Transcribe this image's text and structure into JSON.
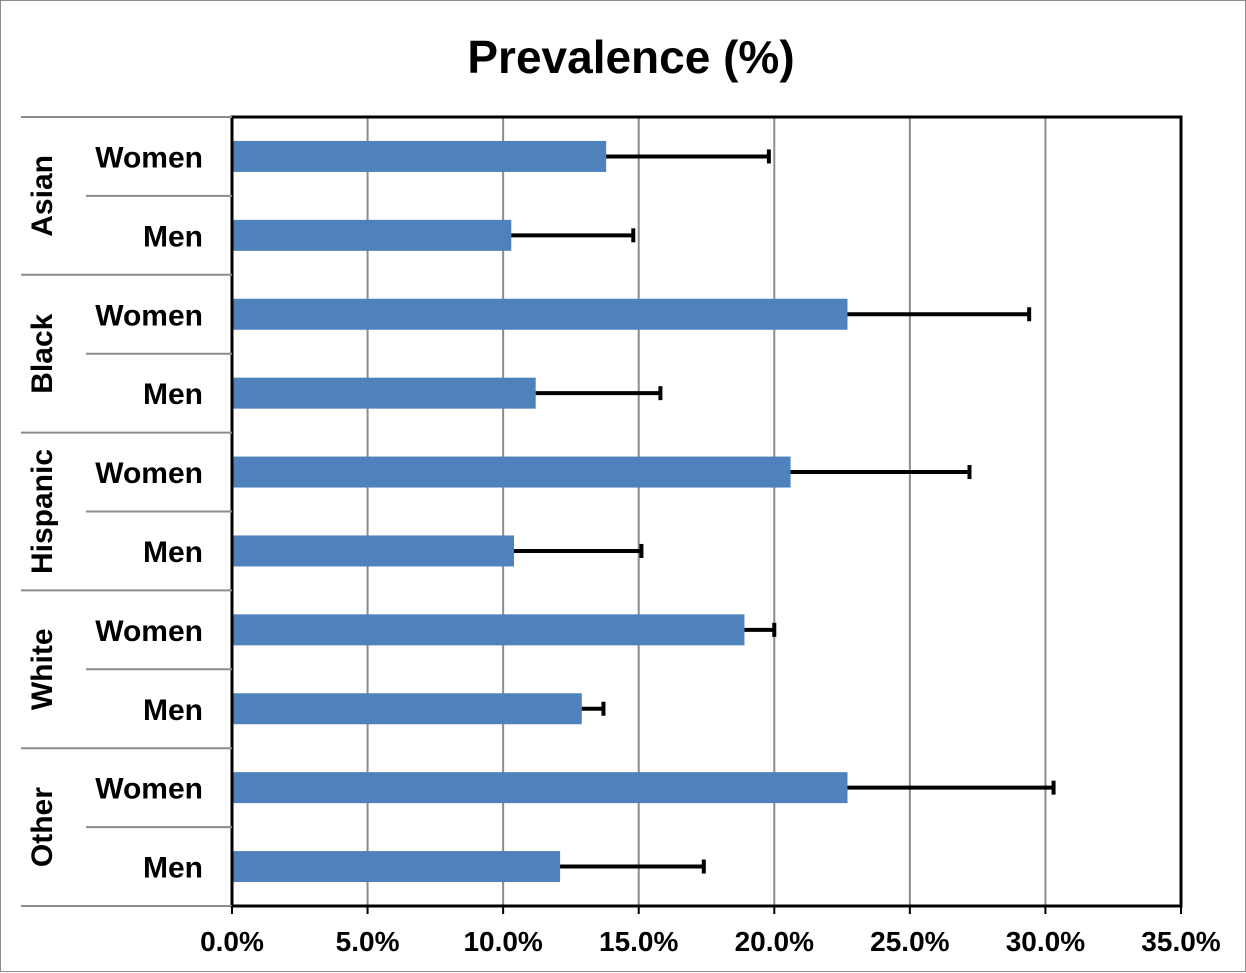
{
  "chart_data": {
    "type": "bar",
    "orientation": "horizontal",
    "title": "Prevalence (%)",
    "xlabel": "",
    "ylabel": "",
    "xlim": [
      0,
      35
    ],
    "x_ticks": [
      "0.0%",
      "5.0%",
      "10.0%",
      "15.0%",
      "20.0%",
      "25.0%",
      "30.0%",
      "35.0%"
    ],
    "x_tick_values": [
      0,
      5,
      10,
      15,
      20,
      25,
      30,
      35
    ],
    "grid": "vertical",
    "bar_color": "#4f81bd",
    "error_bar_color": "#000000",
    "groups": [
      {
        "name": "Asian",
        "categories": [
          {
            "label": "Women",
            "value": 13.8,
            "err_high": 19.8
          },
          {
            "label": "Men",
            "value": 10.3,
            "err_high": 14.8
          }
        ]
      },
      {
        "name": "Black",
        "categories": [
          {
            "label": "Women",
            "value": 22.7,
            "err_high": 29.4
          },
          {
            "label": "Men",
            "value": 11.2,
            "err_high": 15.8
          }
        ]
      },
      {
        "name": "Hispanic",
        "categories": [
          {
            "label": "Women",
            "value": 20.6,
            "err_high": 27.2
          },
          {
            "label": "Men",
            "value": 10.4,
            "err_high": 15.1
          }
        ]
      },
      {
        "name": "White",
        "categories": [
          {
            "label": "Women",
            "value": 18.9,
            "err_high": 20.0
          },
          {
            "label": "Men",
            "value": 12.9,
            "err_high": 13.7
          }
        ]
      },
      {
        "name": "Other",
        "categories": [
          {
            "label": "Women",
            "value": 22.7,
            "err_high": 30.3
          },
          {
            "label": "Men",
            "value": 12.1,
            "err_high": 17.4
          }
        ]
      }
    ]
  }
}
